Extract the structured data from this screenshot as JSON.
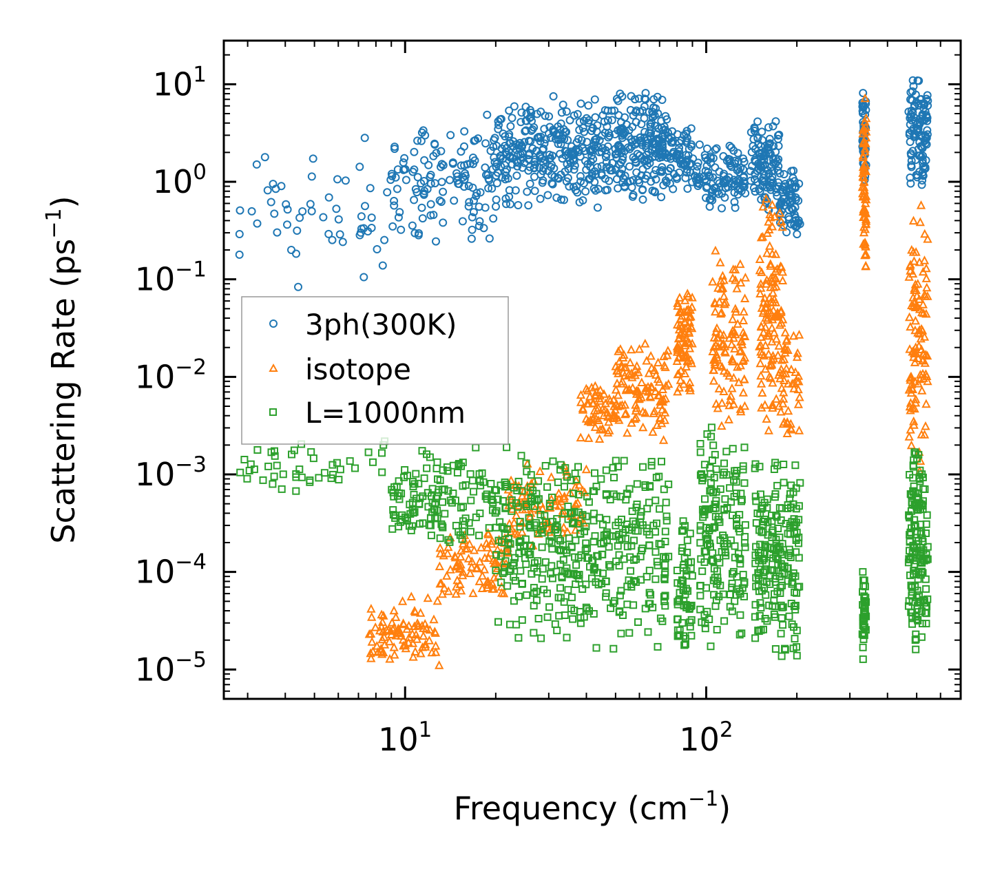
{
  "chart_data": {
    "type": "scatter",
    "title": "",
    "xlabel": "Frequency (cm",
    "xlabel_sup": "−1",
    "xlabel_end": ")",
    "ylabel": "Scattering Rate (ps",
    "ylabel_sup": "−1",
    "ylabel_end": ")",
    "xscale": "log",
    "yscale": "log",
    "xlim": [
      2.5,
      700
    ],
    "ylim": [
      5e-06,
      28
    ],
    "x_ticks": [
      {
        "value": 10,
        "base": "10",
        "exp": "1"
      },
      {
        "value": 100,
        "base": "10",
        "exp": "2"
      }
    ],
    "y_ticks": [
      {
        "value": 1e-05,
        "base": "10",
        "exp": "−5"
      },
      {
        "value": 0.0001,
        "base": "10",
        "exp": "−4"
      },
      {
        "value": 0.001,
        "base": "10",
        "exp": "−3"
      },
      {
        "value": 0.01,
        "base": "10",
        "exp": "−2"
      },
      {
        "value": 0.1,
        "base": "10",
        "exp": "−1"
      },
      {
        "value": 1,
        "base": "10",
        "exp": "0"
      },
      {
        "value": 10,
        "base": "10",
        "exp": "1"
      }
    ],
    "legend_position": "center-left",
    "series": [
      {
        "name": "3ph(300K)",
        "marker": "circle",
        "color": "#1f77b4",
        "clusters": [
          {
            "xmin": 2.8,
            "xmax": 9,
            "ymin": 0.05,
            "ymax": 4.5,
            "n": 55
          },
          {
            "xmin": 9,
            "xmax": 20,
            "ymin": 0.2,
            "ymax": 5.5,
            "n": 130
          },
          {
            "xmin": 20,
            "xmax": 50,
            "ymin": 0.5,
            "ymax": 8,
            "n": 320
          },
          {
            "xmin": 50,
            "xmax": 75,
            "ymin": 0.6,
            "ymax": 10,
            "n": 200
          },
          {
            "xmin": 75,
            "xmax": 90,
            "ymin": 0.8,
            "ymax": 4,
            "n": 60
          },
          {
            "xmin": 90,
            "xmax": 135,
            "ymin": 0.45,
            "ymax": 2.5,
            "n": 110
          },
          {
            "xmin": 140,
            "xmax": 175,
            "ymin": 0.45,
            "ymax": 4.8,
            "n": 110
          },
          {
            "xmin": 175,
            "xmax": 205,
            "ymin": 0.25,
            "ymax": 1.5,
            "n": 70
          },
          {
            "xmin": 330,
            "xmax": 340,
            "ymin": 0.8,
            "ymax": 10,
            "n": 45
          },
          {
            "xmin": 470,
            "xmax": 545,
            "ymin": 0.8,
            "ymax": 13,
            "n": 110
          }
        ]
      },
      {
        "name": "isotope",
        "marker": "triangle",
        "color": "#ff7f0e",
        "clusters": [
          {
            "xmin": 7.5,
            "xmax": 13,
            "ymin": 1e-05,
            "ymax": 6e-05,
            "n": 90
          },
          {
            "xmin": 13,
            "xmax": 22,
            "ymin": 5e-05,
            "ymax": 0.0003,
            "n": 90
          },
          {
            "xmin": 22,
            "xmax": 40,
            "ymin": 0.00015,
            "ymax": 0.0015,
            "n": 90
          },
          {
            "xmin": 38,
            "xmax": 50,
            "ymin": 0.002,
            "ymax": 0.01,
            "n": 60
          },
          {
            "xmin": 50,
            "xmax": 75,
            "ymin": 0.002,
            "ymax": 0.025,
            "n": 110
          },
          {
            "xmin": 80,
            "xmax": 90,
            "ymin": 0.005,
            "ymax": 0.12,
            "n": 80
          },
          {
            "xmin": 105,
            "xmax": 135,
            "ymin": 0.002,
            "ymax": 0.25,
            "n": 110
          },
          {
            "xmin": 150,
            "xmax": 180,
            "ymin": 0.002,
            "ymax": 0.75,
            "n": 130
          },
          {
            "xmin": 180,
            "xmax": 205,
            "ymin": 0.002,
            "ymax": 0.04,
            "n": 40
          },
          {
            "xmin": 330,
            "xmax": 340,
            "ymin": 0.1,
            "ymax": 10,
            "n": 70
          },
          {
            "xmin": 470,
            "xmax": 545,
            "ymin": 0.001,
            "ymax": 0.7,
            "n": 110
          }
        ]
      },
      {
        "name": "L=1000nm",
        "marker": "square",
        "color": "#2ca02c",
        "clusters": [
          {
            "xmin": 2.8,
            "xmax": 9,
            "ymin": 0.0006,
            "ymax": 0.0025,
            "n": 45
          },
          {
            "xmin": 9,
            "xmax": 20,
            "ymin": 0.00015,
            "ymax": 0.002,
            "n": 140
          },
          {
            "xmin": 20,
            "xmax": 75,
            "ymin": 1.5e-05,
            "ymax": 0.002,
            "n": 420
          },
          {
            "xmin": 80,
            "xmax": 90,
            "ymin": 1e-05,
            "ymax": 0.0005,
            "n": 60
          },
          {
            "xmin": 95,
            "xmax": 135,
            "ymin": 1.2e-05,
            "ymax": 0.0038,
            "n": 170
          },
          {
            "xmin": 145,
            "xmax": 205,
            "ymin": 1e-05,
            "ymax": 0.002,
            "n": 200
          },
          {
            "xmin": 330,
            "xmax": 340,
            "ymin": 1e-05,
            "ymax": 0.00012,
            "n": 45
          },
          {
            "xmin": 470,
            "xmax": 545,
            "ymin": 1.1e-05,
            "ymax": 0.003,
            "n": 150
          }
        ]
      }
    ]
  }
}
